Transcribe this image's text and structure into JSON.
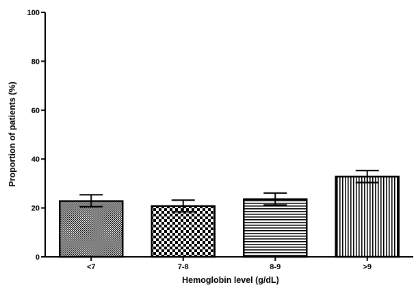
{
  "chart_data": {
    "type": "bar",
    "title": "",
    "xlabel": "Hemoglobin level (g/dL)",
    "ylabel": "Proportion of patients (%)",
    "ylim": [
      0,
      100
    ],
    "yticks": [
      "0",
      "20",
      "40",
      "60",
      "80",
      "100"
    ],
    "grid": false,
    "categories": [
      "<7",
      "7-8",
      "8-9",
      ">9"
    ],
    "values": [
      22.8,
      20.8,
      23.6,
      32.8
    ],
    "error_upper": [
      25.4,
      23.2,
      26.1,
      35.3
    ],
    "error_lower": [
      20.5,
      18.4,
      21.2,
      30.4
    ],
    "fill_patterns": [
      "fine-dots",
      "checkerboard",
      "horizontal-stripes",
      "vertical-stripes"
    ],
    "colors": {
      "bar_edge": "#000000",
      "fill": "#000000",
      "background": "#ffffff"
    }
  }
}
